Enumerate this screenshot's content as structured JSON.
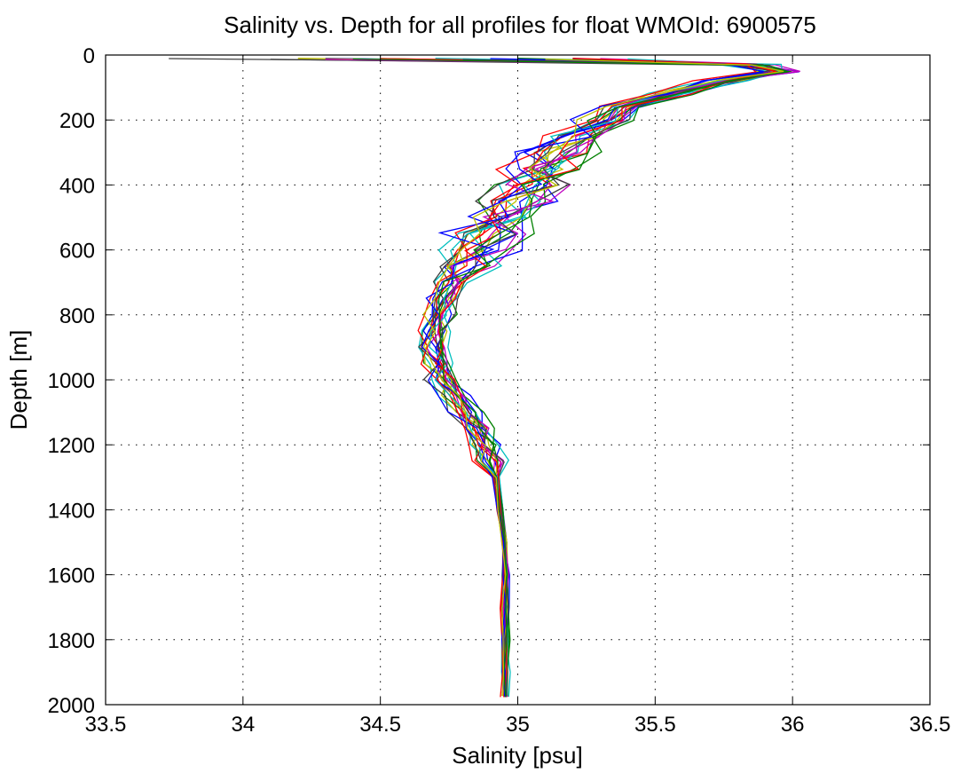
{
  "chart_data": {
    "type": "line",
    "title": "Salinity vs. Depth for all profiles for float WMOId: 6900575",
    "xlabel": "Salinity [psu]",
    "ylabel": "Depth [m]",
    "xlim": [
      33.5,
      36.5
    ],
    "ylim": [
      0,
      2000
    ],
    "y_reversed": true,
    "grid": true,
    "x_ticks": [
      "33.5",
      "34",
      "34.5",
      "35",
      "35.5",
      "36",
      "36.5"
    ],
    "y_ticks": [
      "0",
      "200",
      "400",
      "600",
      "800",
      "1000",
      "1200",
      "1400",
      "1600",
      "1800",
      "2000"
    ],
    "mean_profile": {
      "depth": [
        10,
        30,
        50,
        80,
        120,
        160,
        200,
        250,
        300,
        350,
        400,
        450,
        500,
        550,
        600,
        650,
        700,
        750,
        800,
        850,
        900,
        950,
        1000,
        1050,
        1100,
        1150,
        1200,
        1250,
        1300,
        1400,
        1500,
        1600,
        1700,
        1800,
        1900,
        1975
      ],
      "salinity": [
        35.7,
        35.85,
        35.95,
        35.75,
        35.55,
        35.4,
        35.3,
        35.2,
        35.15,
        35.1,
        35.05,
        35.0,
        34.95,
        34.9,
        34.85,
        34.8,
        34.76,
        34.73,
        34.71,
        34.7,
        34.7,
        34.71,
        34.73,
        34.77,
        34.81,
        34.85,
        34.88,
        34.9,
        34.92,
        34.94,
        34.95,
        34.955,
        34.955,
        34.955,
        34.955,
        34.955
      ]
    },
    "series": [
      {
        "color": "#0000ff",
        "surface_salinity": 34.3,
        "offset": 0.02
      },
      {
        "color": "#008000",
        "surface_salinity": 34.5,
        "offset": -0.03
      },
      {
        "color": "#ff0000",
        "surface_salinity": 34.8,
        "offset": 0.01
      },
      {
        "color": "#00bfbf",
        "surface_salinity": 35.0,
        "offset": -0.05
      },
      {
        "color": "#bf00bf",
        "surface_salinity": 34.6,
        "offset": 0.04
      },
      {
        "color": "#bfbf00",
        "surface_salinity": 34.2,
        "offset": -0.02
      },
      {
        "color": "#404040",
        "surface_salinity": 33.73,
        "offset": 0.0
      },
      {
        "color": "#0000ff",
        "surface_salinity": 35.2,
        "offset": 0.05
      },
      {
        "color": "#008000",
        "surface_salinity": 34.9,
        "offset": 0.03
      },
      {
        "color": "#ff0000",
        "surface_salinity": 35.1,
        "offset": -0.04
      },
      {
        "color": "#00bfbf",
        "surface_salinity": 34.7,
        "offset": 0.06
      },
      {
        "color": "#bf00bf",
        "surface_salinity": 35.3,
        "offset": -0.01
      },
      {
        "color": "#bfbf00",
        "surface_salinity": 34.4,
        "offset": 0.02
      },
      {
        "color": "#404040",
        "surface_salinity": 34.1,
        "offset": -0.06
      },
      {
        "color": "#0000ff",
        "surface_salinity": 34.6,
        "offset": -0.02
      },
      {
        "color": "#008000",
        "surface_salinity": 35.0,
        "offset": 0.07
      },
      {
        "color": "#ff0000",
        "surface_salinity": 34.5,
        "offset": -0.07
      },
      {
        "color": "#00bfbf",
        "surface_salinity": 35.4,
        "offset": 0.0
      },
      {
        "color": "#bf00bf",
        "surface_salinity": 34.3,
        "offset": 0.03
      },
      {
        "color": "#404040",
        "surface_salinity": 34.8,
        "offset": 0.05
      },
      {
        "color": "#ff0000",
        "surface_salinity": 35.2,
        "offset": 0.02
      },
      {
        "color": "#0000ff",
        "surface_salinity": 34.9,
        "offset": -0.05
      },
      {
        "color": "#008000",
        "surface_salinity": 34.4,
        "offset": 0.01
      },
      {
        "color": "#bfbf00",
        "surface_salinity": 35.1,
        "offset": -0.03
      }
    ]
  }
}
